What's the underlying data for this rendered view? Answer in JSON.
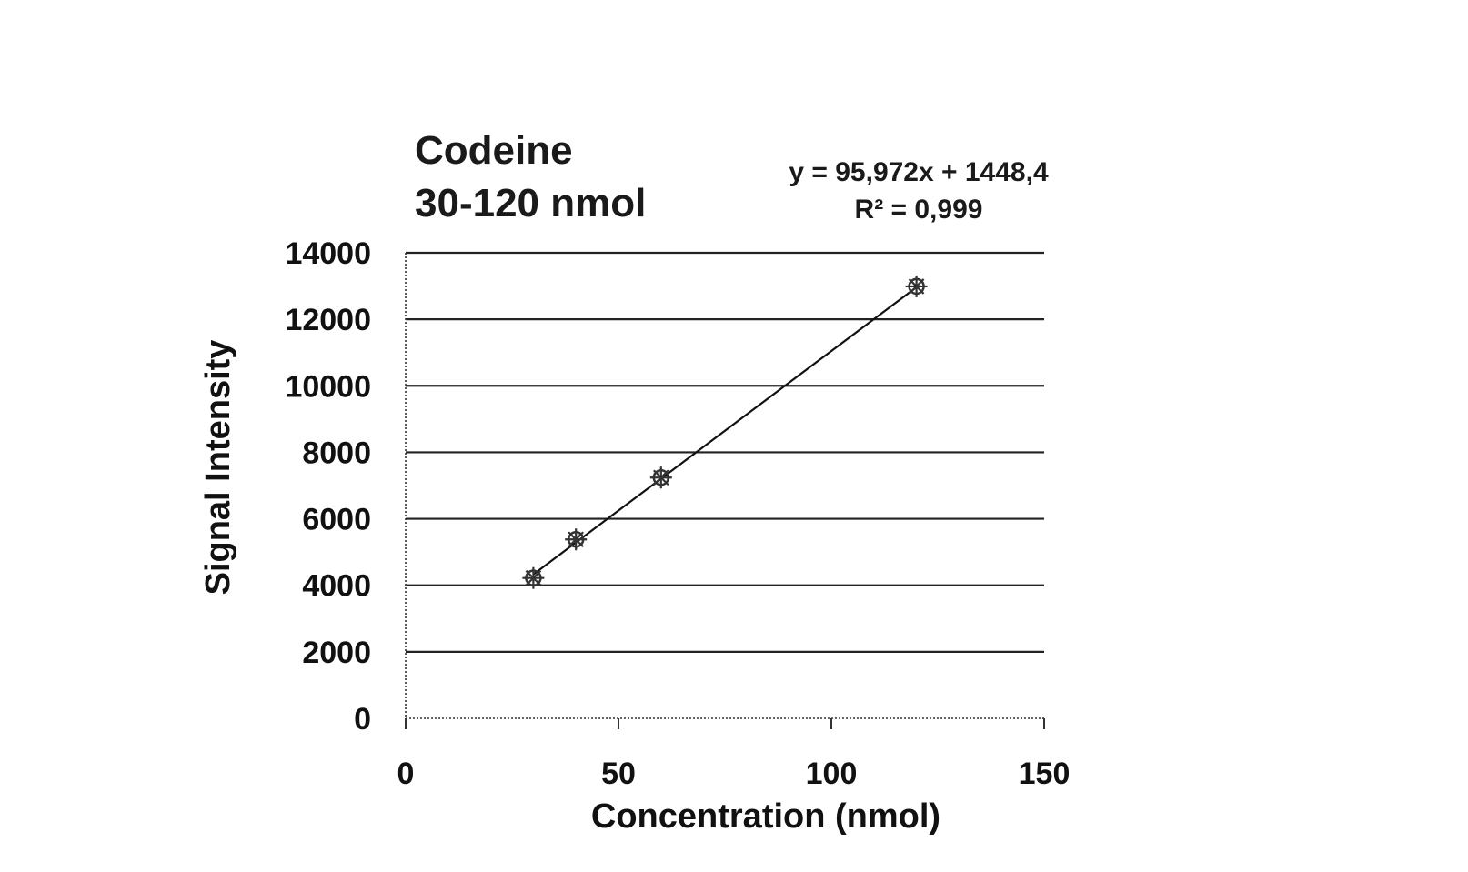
{
  "chart_data": {
    "type": "scatter",
    "title": [
      "Codeine",
      "30-120 nmol"
    ],
    "xlabel": "Concentration (nmol)",
    "ylabel": "Signal Intensity",
    "xlim": [
      0,
      150
    ],
    "ylim": [
      0,
      14000
    ],
    "xticks": [
      0,
      50,
      100,
      150
    ],
    "yticks": [
      0,
      2000,
      4000,
      6000,
      8000,
      10000,
      12000,
      14000
    ],
    "grid": "horizontal",
    "series": [
      {
        "x": [
          30,
          40,
          60,
          120
        ],
        "y": [
          4220,
          5380,
          7240,
          12990
        ]
      }
    ],
    "trendline": {
      "type": "linear",
      "slope": 95.972,
      "intercept": 1448.4,
      "x_range": [
        30,
        120
      ],
      "equation_label": "y = 95,972x + 1448,4",
      "r2_label": "R² = 0,999"
    },
    "colors": {
      "text": "#1a1a1a",
      "gridline": "#222222",
      "marker": "#333333",
      "trendline": "#111111"
    }
  }
}
